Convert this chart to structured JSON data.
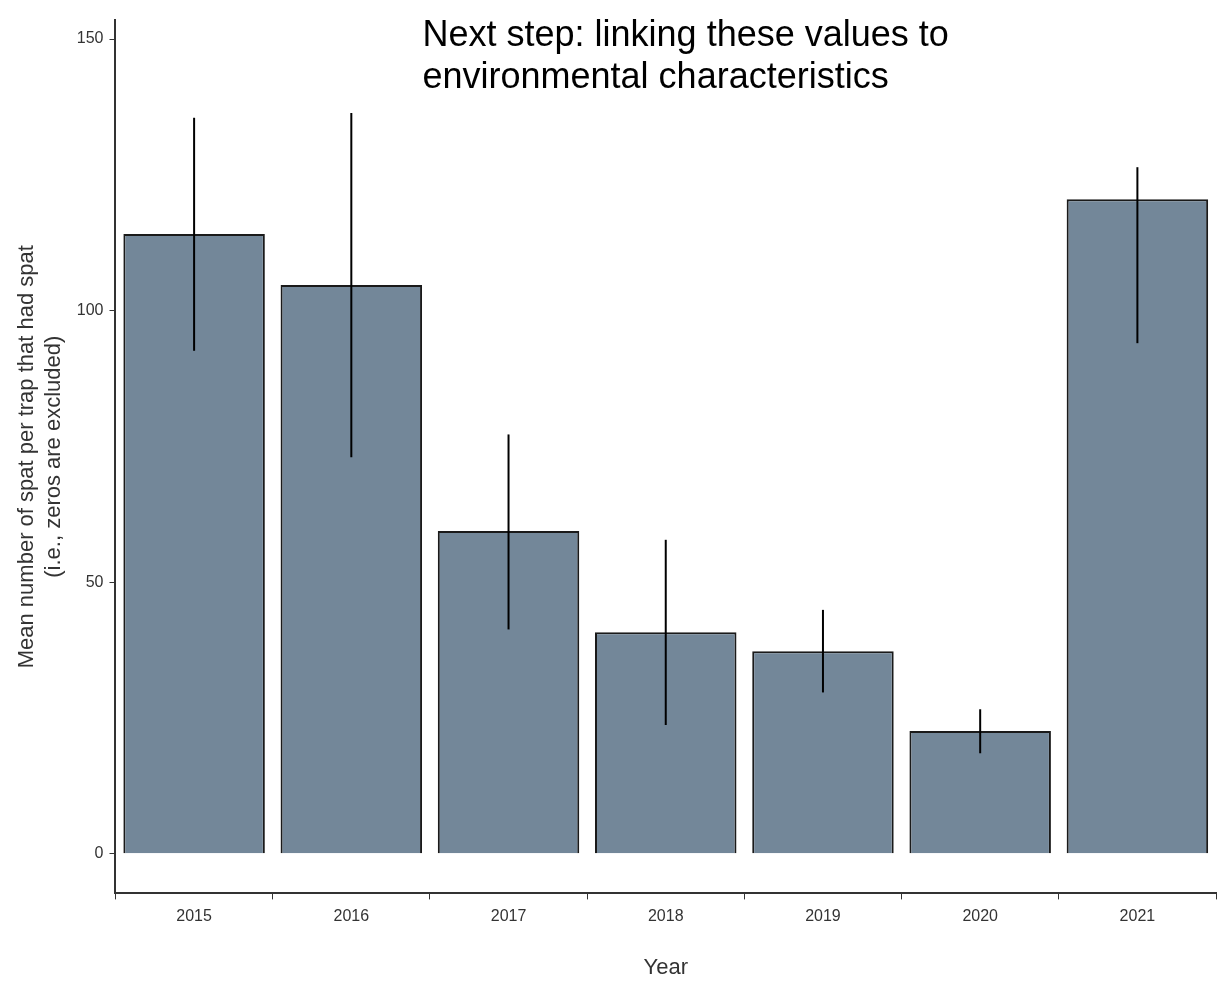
{
  "chart_data": {
    "type": "bar",
    "xlabel": "Year",
    "ylabel": "Mean number of spat per trap that had spat\n(i.e., zeros are excluded)",
    "categories": [
      "2015",
      "2016",
      "2017",
      "2018",
      "2019",
      "2020",
      "2021"
    ],
    "values": [
      114.1,
      104.7,
      59.4,
      40.8,
      37.3,
      22.6,
      120.5
    ],
    "errors": [
      [
        92.6,
        135.5
      ],
      [
        73.0,
        136.4
      ],
      [
        41.3,
        77.2
      ],
      [
        23.7,
        57.8
      ],
      [
        29.7,
        44.9
      ],
      [
        18.5,
        26.6
      ],
      [
        94.0,
        126.4
      ]
    ],
    "color": "#738799",
    "ylim": [
      -7.3,
      153.5
    ],
    "yticks": [
      0,
      50,
      100,
      150
    ],
    "annotations": [
      "Next step: linking these values to environmental characteristics"
    ]
  }
}
